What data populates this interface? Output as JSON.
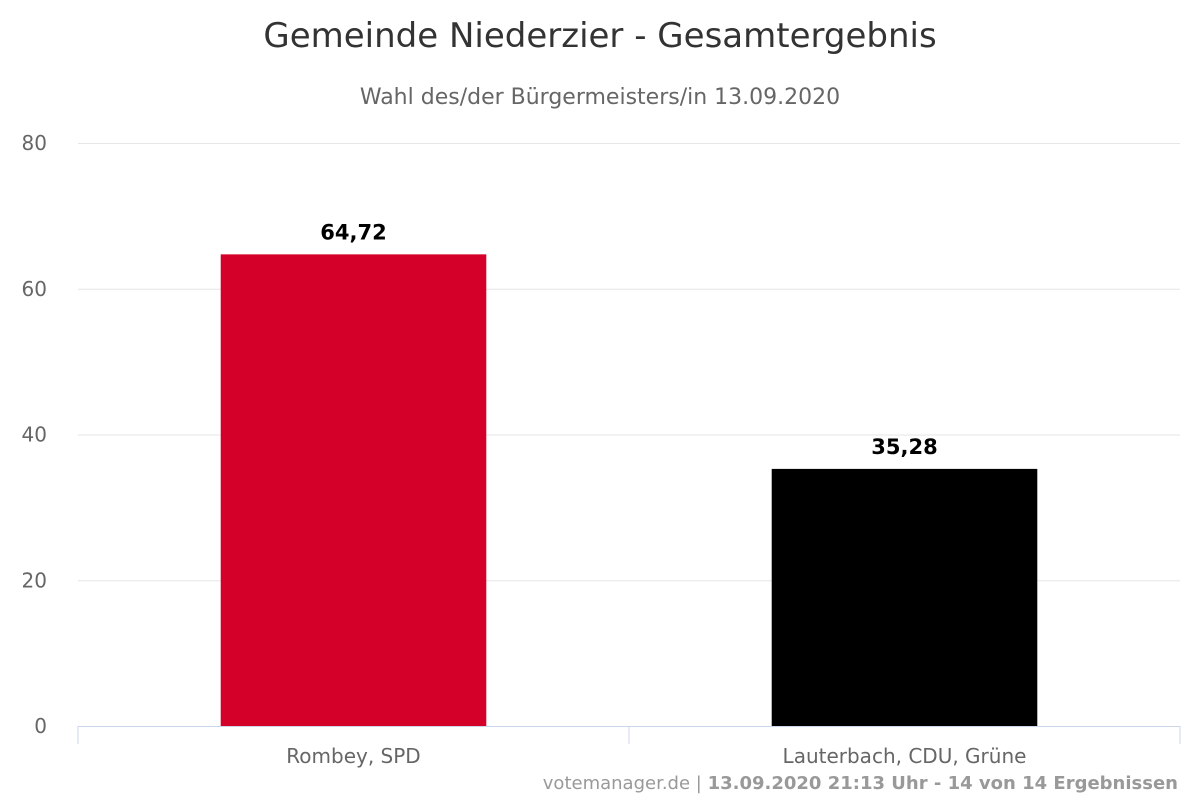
{
  "chart_data": {
    "type": "bar",
    "title": "Gemeinde Niederzier - Gesamtergebnis",
    "subtitle": "Wahl des/der Bürgermeisters/in 13.09.2020",
    "categories": [
      "Rombey, SPD",
      "Lauterbach, CDU, Grüne"
    ],
    "values": [
      64.72,
      35.28
    ],
    "value_labels": [
      "64,72",
      "35,28"
    ],
    "colors": [
      "#d50029",
      "#000000"
    ],
    "ylim": [
      0,
      80
    ],
    "y_ticks": [
      "0",
      "20",
      "40",
      "60",
      "80"
    ],
    "grid": true,
    "legend": "none"
  },
  "credits": {
    "source": "votemanager.de",
    "separator": " | ",
    "info": "13.09.2020 21:13 Uhr - 14 von 14 Ergebnissen"
  }
}
